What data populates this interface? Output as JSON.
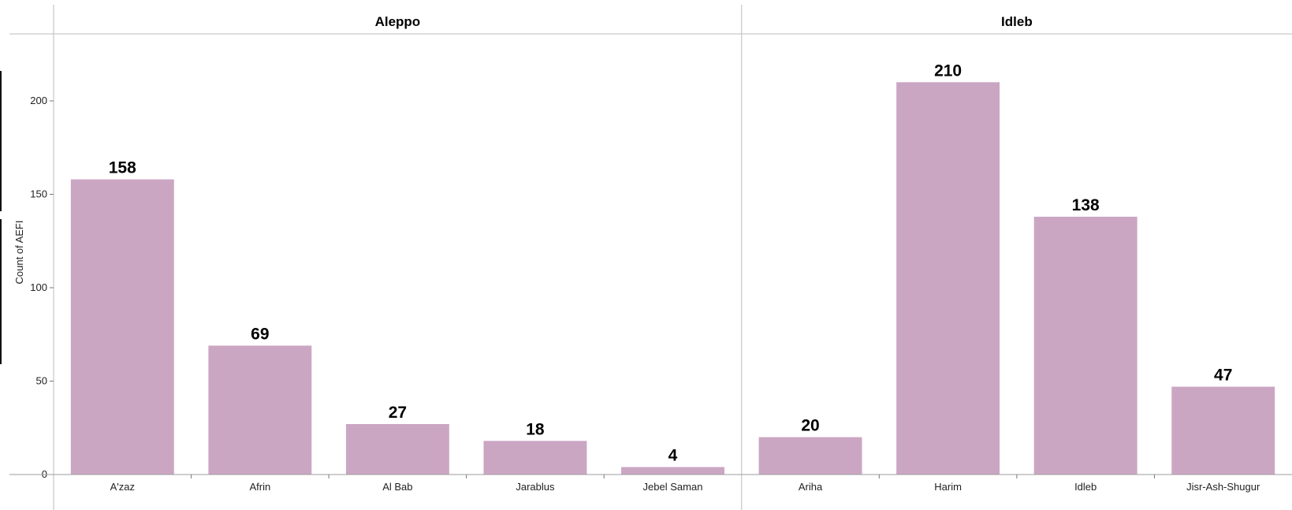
{
  "chart_data": {
    "type": "bar",
    "ylabel": "Count of AEFI",
    "ylim": [
      0,
      230
    ],
    "yticks": [
      0,
      50,
      100,
      150,
      200
    ],
    "bar_color": "#cba6c3",
    "data_labels": true,
    "facets": [
      {
        "name": "Aleppo",
        "categories": [
          "A'zaz",
          "Afrin",
          "Al Bab",
          "Jarablus",
          "Jebel Saman"
        ],
        "values": [
          158,
          69,
          27,
          18,
          4
        ]
      },
      {
        "name": "Idleb",
        "categories": [
          "Ariha",
          "Harim",
          "Idleb",
          "Jisr-Ash-Shugur"
        ],
        "values": [
          20,
          210,
          138,
          47
        ]
      }
    ]
  }
}
